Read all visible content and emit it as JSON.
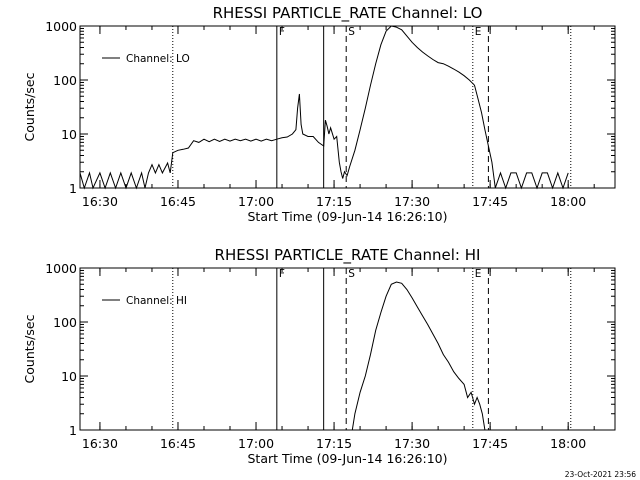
{
  "timestamp": "23-Oct-2021 23:56",
  "chart_data": [
    {
      "type": "line",
      "title": "RHESSI PARTICLE_RATE Channel: LO",
      "xlabel": "Start Time (09-Jun-14 16:26:10)",
      "ylabel": "Counts/sec",
      "yscale": "log",
      "ylim": [
        1,
        1000
      ],
      "xlim": [
        "16:26:10",
        "18:09:00"
      ],
      "xticks": [
        "16:30",
        "16:45",
        "17:00",
        "17:15",
        "17:30",
        "17:45",
        "18:00"
      ],
      "yticks": [
        "1",
        "10",
        "100",
        "1000"
      ],
      "legend": {
        "label": "Channel: LO",
        "position": "top-left"
      },
      "markers": [
        {
          "time": "16:44:00",
          "style": "dotted",
          "label": ""
        },
        {
          "time": "17:04:00",
          "style": "solid",
          "label": "F"
        },
        {
          "time": "17:13:00",
          "style": "solid",
          "label": ""
        },
        {
          "time": "17:17:20",
          "style": "dashed",
          "label": "S"
        },
        {
          "time": "17:41:40",
          "style": "dotted",
          "label": "E"
        },
        {
          "time": "17:44:40",
          "style": "dashed",
          "label": ""
        },
        {
          "time": "18:00:30",
          "style": "dotted",
          "label": ""
        }
      ],
      "series": [
        {
          "name": "Channel: LO",
          "points": [
            [
              "16:26:10",
              1.9
            ],
            [
              "16:27:00",
              1
            ],
            [
              "16:28:00",
              1.9
            ],
            [
              "16:28:40",
              1
            ],
            [
              "16:30:00",
              1.9
            ],
            [
              "16:31:00",
              1
            ],
            [
              "16:32:00",
              1.9
            ],
            [
              "16:33:00",
              1
            ],
            [
              "16:34:00",
              1.9
            ],
            [
              "16:35:00",
              1
            ],
            [
              "16:36:00",
              1.9
            ],
            [
              "16:37:00",
              1
            ],
            [
              "16:38:00",
              1.9
            ],
            [
              "16:38:40",
              1
            ],
            [
              "16:39:20",
              1.9
            ],
            [
              "16:40:00",
              2.7
            ],
            [
              "16:40:40",
              1.9
            ],
            [
              "16:41:20",
              2.7
            ],
            [
              "16:42:00",
              1.9
            ],
            [
              "16:43:00",
              2.9
            ],
            [
              "16:43:30",
              1.9
            ],
            [
              "16:44:00",
              4.5
            ],
            [
              "16:45:00",
              5
            ],
            [
              "16:46:00",
              5.2
            ],
            [
              "16:47:00",
              5.5
            ],
            [
              "16:48:00",
              7.5
            ],
            [
              "16:49:00",
              7
            ],
            [
              "16:50:00",
              8
            ],
            [
              "16:51:00",
              7.2
            ],
            [
              "16:52:00",
              8
            ],
            [
              "16:53:00",
              7.3
            ],
            [
              "16:54:00",
              8
            ],
            [
              "16:55:00",
              7.4
            ],
            [
              "16:56:00",
              8
            ],
            [
              "16:57:00",
              7.5
            ],
            [
              "16:58:00",
              8
            ],
            [
              "16:59:00",
              7.4
            ],
            [
              "17:00:00",
              8
            ],
            [
              "17:01:00",
              7.4
            ],
            [
              "17:02:00",
              8
            ],
            [
              "17:03:00",
              7.5
            ],
            [
              "17:04:00",
              8
            ],
            [
              "17:05:00",
              8.5
            ],
            [
              "17:06:00",
              8.8
            ],
            [
              "17:07:00",
              10
            ],
            [
              "17:07:40",
              12
            ],
            [
              "17:08:00",
              30
            ],
            [
              "17:08:20",
              55
            ],
            [
              "17:08:40",
              15
            ],
            [
              "17:09:00",
              10
            ],
            [
              "17:10:00",
              9
            ],
            [
              "17:11:00",
              9
            ],
            [
              "17:12:00",
              7
            ],
            [
              "17:13:00",
              6
            ],
            [
              "17:13:20",
              18
            ],
            [
              "17:13:40",
              14
            ],
            [
              "17:14:00",
              10
            ],
            [
              "17:14:20",
              13
            ],
            [
              "17:15:00",
              8
            ],
            [
              "17:15:30",
              9
            ],
            [
              "17:16:00",
              3
            ],
            [
              "17:16:20",
              2
            ],
            [
              "17:16:40",
              1.5
            ],
            [
              "17:17:00",
              2
            ],
            [
              "17:17:30",
              1.7
            ],
            [
              "17:18:00",
              2.5
            ],
            [
              "17:19:00",
              5
            ],
            [
              "17:20:00",
              12
            ],
            [
              "17:21:00",
              30
            ],
            [
              "17:22:00",
              80
            ],
            [
              "17:23:00",
              200
            ],
            [
              "17:24:00",
              450
            ],
            [
              "17:25:00",
              800
            ],
            [
              "17:26:00",
              1000
            ],
            [
              "17:27:00",
              950
            ],
            [
              "17:28:00",
              850
            ],
            [
              "17:29:00",
              650
            ],
            [
              "17:30:00",
              500
            ],
            [
              "17:31:00",
              400
            ],
            [
              "17:32:00",
              330
            ],
            [
              "17:33:00",
              280
            ],
            [
              "17:34:00",
              240
            ],
            [
              "17:35:00",
              210
            ],
            [
              "17:36:00",
              200
            ],
            [
              "17:37:00",
              180
            ],
            [
              "17:38:00",
              160
            ],
            [
              "17:39:00",
              140
            ],
            [
              "17:40:00",
              120
            ],
            [
              "17:41:00",
              100
            ],
            [
              "17:42:00",
              80
            ],
            [
              "17:42:40",
              45
            ],
            [
              "17:43:20",
              25
            ],
            [
              "17:44:00",
              12
            ],
            [
              "17:44:40",
              6
            ],
            [
              "17:45:20",
              3
            ],
            [
              "17:46:00",
              1
            ],
            [
              "17:47:00",
              1.9
            ],
            [
              "17:48:00",
              1
            ],
            [
              "17:49:00",
              1.9
            ],
            [
              "17:50:00",
              1.9
            ],
            [
              "17:51:00",
              1
            ],
            [
              "17:52:00",
              1.9
            ],
            [
              "17:53:00",
              1.9
            ],
            [
              "17:54:00",
              1
            ],
            [
              "17:55:00",
              1.9
            ],
            [
              "17:56:00",
              1.9
            ],
            [
              "17:57:00",
              1
            ],
            [
              "17:58:00",
              1.9
            ],
            [
              "17:59:00",
              1
            ],
            [
              "18:00:00",
              1.9
            ]
          ]
        }
      ]
    },
    {
      "type": "line",
      "title": "RHESSI PARTICLE_RATE Channel: HI",
      "xlabel": "Start Time (09-Jun-14 16:26:10)",
      "ylabel": "Counts/sec",
      "yscale": "log",
      "ylim": [
        1,
        1000
      ],
      "xlim": [
        "16:26:10",
        "18:09:00"
      ],
      "xticks": [
        "16:30",
        "16:45",
        "17:00",
        "17:15",
        "17:30",
        "17:45",
        "18:00"
      ],
      "yticks": [
        "1",
        "10",
        "100",
        "1000"
      ],
      "legend": {
        "label": "Channel: HI",
        "position": "top-left"
      },
      "markers": [
        {
          "time": "16:44:00",
          "style": "dotted",
          "label": ""
        },
        {
          "time": "17:04:00",
          "style": "solid",
          "label": "F"
        },
        {
          "time": "17:13:00",
          "style": "solid",
          "label": ""
        },
        {
          "time": "17:17:20",
          "style": "dashed",
          "label": "S"
        },
        {
          "time": "17:41:40",
          "style": "dotted",
          "label": "E"
        },
        {
          "time": "17:44:40",
          "style": "dashed",
          "label": ""
        },
        {
          "time": "18:00:30",
          "style": "dotted",
          "label": ""
        }
      ],
      "series": [
        {
          "name": "Channel: HI",
          "points": [
            [
              "17:18:30",
              1
            ],
            [
              "17:19:00",
              2
            ],
            [
              "17:20:00",
              5
            ],
            [
              "17:21:00",
              10
            ],
            [
              "17:22:00",
              25
            ],
            [
              "17:23:00",
              70
            ],
            [
              "17:24:00",
              150
            ],
            [
              "17:25:00",
              300
            ],
            [
              "17:26:00",
              500
            ],
            [
              "17:27:00",
              550
            ],
            [
              "17:28:00",
              520
            ],
            [
              "17:29:00",
              400
            ],
            [
              "17:30:00",
              280
            ],
            [
              "17:31:00",
              190
            ],
            [
              "17:32:00",
              130
            ],
            [
              "17:33:00",
              90
            ],
            [
              "17:34:00",
              60
            ],
            [
              "17:35:00",
              40
            ],
            [
              "17:36:00",
              25
            ],
            [
              "17:37:00",
              18
            ],
            [
              "17:38:00",
              12
            ],
            [
              "17:39:00",
              9
            ],
            [
              "17:40:00",
              7
            ],
            [
              "17:40:40",
              4
            ],
            [
              "17:41:20",
              5
            ],
            [
              "17:42:00",
              3
            ],
            [
              "17:42:30",
              4
            ],
            [
              "17:43:00",
              3
            ],
            [
              "17:43:30",
              2
            ],
            [
              "17:44:00",
              1
            ]
          ]
        }
      ]
    }
  ]
}
